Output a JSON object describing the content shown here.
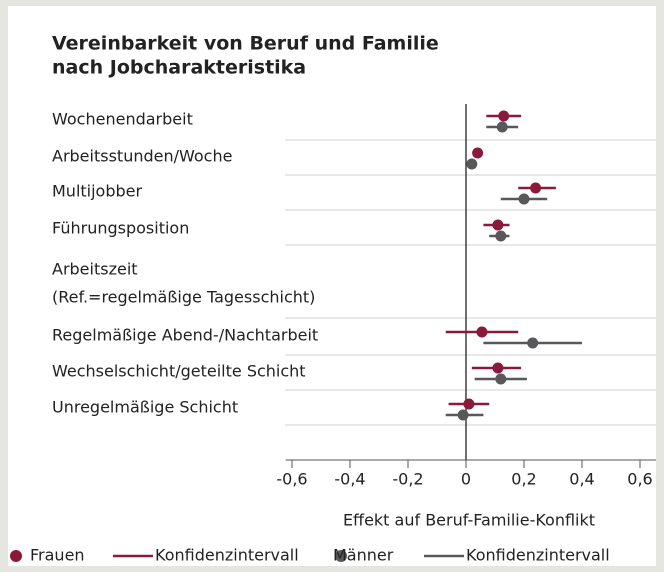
{
  "chart_data": {
    "type": "errorbar",
    "title": [
      "Vereinbarkeit von Beruf und Familie",
      "nach Jobcharakteristika"
    ],
    "categories": [
      "Wochenendarbeit",
      "Arbeitsstunden/Woche",
      "Multijobber",
      "Führungsposition",
      "Arbeitszeit",
      "Regelmäßige Abend-/Nachtarbeit",
      "Wechselschicht/geteilte Schicht",
      "Unregelmäßige Schicht"
    ],
    "reference_note": "(Ref.=regelmäßige Tagesschicht)",
    "series": [
      {
        "name": "Frauen",
        "ci_name": "Konfidenzintervall",
        "color": "#8b1a3a",
        "values": [
          0.13,
          0.04,
          0.24,
          0.11,
          null,
          0.055,
          0.11,
          0.01
        ],
        "lower": [
          0.07,
          0.03,
          0.18,
          0.06,
          null,
          -0.07,
          0.02,
          -0.06
        ],
        "upper": [
          0.19,
          0.05,
          0.31,
          0.15,
          null,
          0.18,
          0.19,
          0.08
        ]
      },
      {
        "name": "Männer",
        "ci_name": "Konfidenzintervall",
        "color": "#58585a",
        "values": [
          0.125,
          0.02,
          0.2,
          0.12,
          null,
          0.23,
          0.12,
          -0.01
        ],
        "lower": [
          0.07,
          0.01,
          0.12,
          0.08,
          null,
          0.06,
          0.03,
          -0.07
        ],
        "upper": [
          0.18,
          0.03,
          0.28,
          0.15,
          null,
          0.4,
          0.21,
          0.06
        ]
      }
    ],
    "xlim": [
      -0.6,
      0.6
    ],
    "xticks": [
      {
        "value": -0.6,
        "label": "-0,6"
      },
      {
        "value": -0.4,
        "label": "-0,4"
      },
      {
        "value": -0.2,
        "label": "-0,2"
      },
      0,
      {
        "value": 0.2,
        "label": "0,2"
      },
      {
        "value": 0.4,
        "label": "0,4"
      },
      {
        "value": 0.6,
        "label": "0,6"
      }
    ],
    "xlabel": "Effekt auf Beruf-Familie-Konflikt"
  }
}
